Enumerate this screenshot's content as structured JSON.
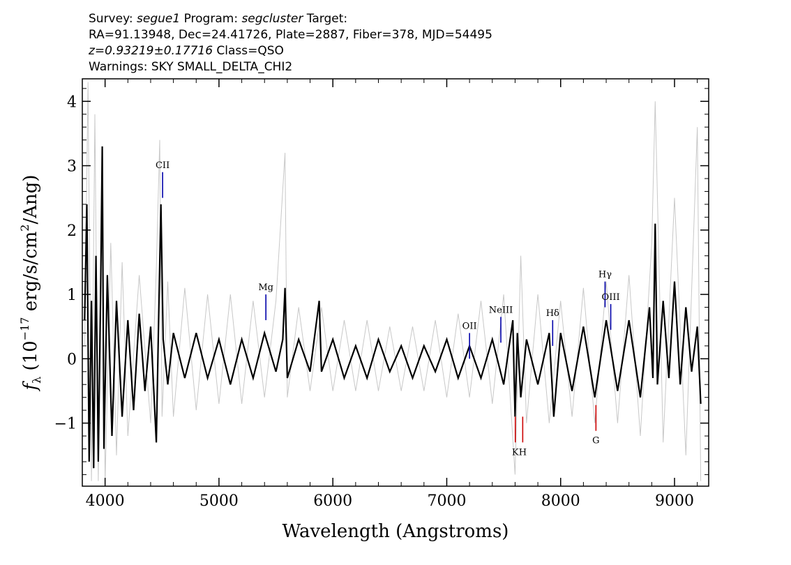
{
  "header": {
    "line1": {
      "survey_label": "Survey: ",
      "survey": "segue1",
      "program_label": " Program: ",
      "program": "segcluster",
      "target_label": " Target:"
    },
    "line2": "RA=91.13948, Dec=24.41726, Plate=2887, Fiber=378, MJD=54495",
    "line3": {
      "z": "z=0.93219±0.17716",
      "class": " Class=QSO"
    },
    "line4": "Warnings: SKY SMALL_DELTA_CHI2"
  },
  "chart_data": {
    "type": "line",
    "xlabel": "Wavelength (Angstroms)",
    "ylabel": {
      "f": "f",
      "sub": "λ",
      "pre": " (10",
      "sup": "−17",
      "mid": " erg/s/cm",
      "sup2": "2",
      "post": "/Ang)"
    },
    "xlim": [
      3800,
      9300
    ],
    "ylim": [
      -1.98,
      4.35
    ],
    "xticks": [
      4000,
      5000,
      6000,
      7000,
      8000,
      9000
    ],
    "yticks": [
      -1,
      0,
      1,
      2,
      3,
      4
    ],
    "xtick_labels": [
      "4000",
      "5000",
      "6000",
      "7000",
      "8000",
      "9000"
    ],
    "ytick_labels": [
      "−1",
      "0",
      "1",
      "2",
      "3",
      "4"
    ],
    "series": [
      {
        "role": "raw flux",
        "color": "#c8c8c8",
        "x": [
          3820,
          3850,
          3880,
          3910,
          3940,
          3970,
          4000,
          4050,
          4100,
          4150,
          4200,
          4300,
          4400,
          4450,
          4480,
          4500,
          4550,
          4600,
          4700,
          4800,
          4900,
          5000,
          5100,
          5200,
          5300,
          5400,
          5500,
          5580,
          5600,
          5700,
          5800,
          5900,
          6000,
          6100,
          6200,
          6300,
          6400,
          6500,
          6600,
          6700,
          6800,
          6900,
          7000,
          7100,
          7200,
          7300,
          7400,
          7500,
          7600,
          7650,
          7700,
          7800,
          7900,
          8000,
          8100,
          8200,
          8300,
          8400,
          8500,
          8600,
          8700,
          8800,
          8830,
          8900,
          9000,
          9100,
          9200,
          9230
        ],
        "y": [
          0.2,
          4.3,
          -1.9,
          3.8,
          -1.9,
          2.5,
          -1.9,
          1.8,
          -1.5,
          1.5,
          -1.2,
          1.3,
          -1.0,
          1.4,
          3.4,
          -0.9,
          1.2,
          -0.9,
          1.1,
          -0.8,
          1.0,
          -0.7,
          1.0,
          -0.7,
          0.9,
          -0.6,
          0.9,
          3.2,
          -0.6,
          0.8,
          -0.5,
          0.8,
          -0.5,
          0.6,
          -0.5,
          0.6,
          -0.5,
          0.5,
          -0.5,
          0.5,
          -0.5,
          0.6,
          -0.6,
          0.7,
          -0.6,
          0.9,
          -0.7,
          1.0,
          -1.8,
          1.6,
          -1.0,
          1.0,
          -1.0,
          0.9,
          -0.9,
          1.1,
          -1.0,
          1.2,
          -1.0,
          1.3,
          -1.2,
          1.8,
          4.0,
          -1.3,
          2.5,
          -1.5,
          3.6,
          -1.9
        ]
      },
      {
        "role": "smoothed flux",
        "color": "#000000",
        "x": [
          3820,
          3840,
          3860,
          3880,
          3900,
          3920,
          3940,
          3960,
          3975,
          3990,
          4020,
          4060,
          4100,
          4150,
          4200,
          4250,
          4300,
          4350,
          4400,
          4450,
          4470,
          4490,
          4510,
          4550,
          4600,
          4700,
          4800,
          4900,
          5000,
          5100,
          5200,
          5300,
          5400,
          5500,
          5560,
          5580,
          5600,
          5700,
          5800,
          5880,
          5900,
          6000,
          6100,
          6200,
          6300,
          6400,
          6500,
          6600,
          6700,
          6800,
          6900,
          7000,
          7100,
          7200,
          7300,
          7400,
          7500,
          7580,
          7600,
          7620,
          7650,
          7700,
          7800,
          7900,
          7940,
          8000,
          8100,
          8200,
          8300,
          8400,
          8500,
          8600,
          8700,
          8780,
          8810,
          8830,
          8850,
          8900,
          8950,
          9000,
          9050,
          9100,
          9150,
          9200,
          9230
        ],
        "y": [
          0.6,
          2.4,
          -1.6,
          0.9,
          -1.7,
          1.6,
          -1.6,
          0.9,
          3.3,
          -1.4,
          1.3,
          -1.2,
          0.9,
          -0.9,
          0.6,
          -0.8,
          0.7,
          -0.5,
          0.5,
          -1.3,
          0.6,
          2.4,
          0.3,
          -0.4,
          0.4,
          -0.3,
          0.4,
          -0.3,
          0.3,
          -0.4,
          0.3,
          -0.3,
          0.4,
          -0.2,
          0.3,
          1.1,
          -0.3,
          0.3,
          -0.2,
          0.9,
          -0.2,
          0.3,
          -0.3,
          0.2,
          -0.3,
          0.3,
          -0.2,
          0.2,
          -0.3,
          0.2,
          -0.2,
          0.3,
          -0.3,
          0.2,
          -0.3,
          0.3,
          -0.4,
          0.6,
          -0.9,
          0.4,
          -0.6,
          0.3,
          -0.4,
          0.4,
          -0.9,
          0.4,
          -0.5,
          0.5,
          -0.6,
          0.6,
          -0.5,
          0.6,
          -0.6,
          0.8,
          -0.3,
          2.1,
          -0.4,
          0.9,
          -0.3,
          1.2,
          -0.4,
          0.8,
          -0.2,
          0.5,
          -0.7
        ]
      }
    ],
    "emission_lines": [
      {
        "label": "CII",
        "x": 4505,
        "y1": 2.5,
        "y2": 2.9,
        "color": "#0000aa"
      },
      {
        "label": "Mg",
        "x": 5412,
        "y1": 0.6,
        "y2": 1.0,
        "color": "#0000aa"
      },
      {
        "label": "OII",
        "x": 7200,
        "y1": 0.0,
        "y2": 0.4,
        "color": "#0000aa"
      },
      {
        "label": "NeIII",
        "x": 7475,
        "y1": 0.25,
        "y2": 0.65,
        "color": "#0000aa"
      },
      {
        "label": "Hδ",
        "x": 7930,
        "y1": 0.2,
        "y2": 0.6,
        "color": "#0000aa"
      },
      {
        "label": "Hγ",
        "x": 8390,
        "y1": 0.8,
        "y2": 1.2,
        "color": "#0000aa"
      },
      {
        "label": "OIII",
        "x": 8440,
        "y1": 0.45,
        "y2": 0.85,
        "color": "#0000aa"
      }
    ],
    "absorption_lines": [
      {
        "label": "K",
        "x": 7602,
        "y1": -1.3,
        "y2": -0.9,
        "color": "#cc0000"
      },
      {
        "label": "H",
        "x": 7667,
        "y1": -1.3,
        "y2": -0.9,
        "color": "#cc0000"
      },
      {
        "label": "G",
        "x": 8310,
        "y1": -1.12,
        "y2": -0.72,
        "color": "#cc0000"
      }
    ]
  }
}
